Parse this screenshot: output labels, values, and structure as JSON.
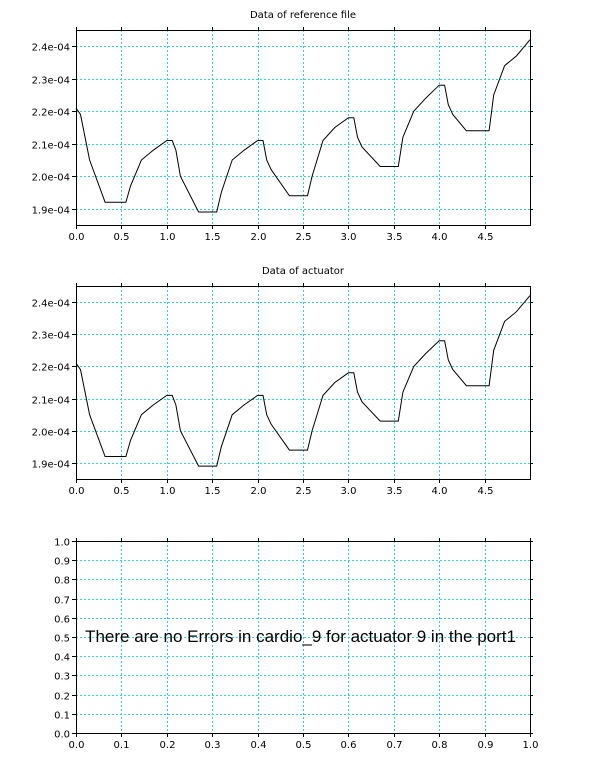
{
  "chart_data": [
    {
      "type": "line",
      "title": "Data of reference file",
      "xlim": [
        0,
        5
      ],
      "ylim": [
        0.000185,
        0.000245
      ],
      "grid": true,
      "x_ticks": [
        0.0,
        0.5,
        1.0,
        1.5,
        2.0,
        2.5,
        3.0,
        3.5,
        4.0,
        4.5
      ],
      "x_tick_labels": [
        "0.0",
        "0.5",
        "1.0",
        "1.5",
        "2.0",
        "2.5",
        "3.0",
        "3.5",
        "4.0",
        "4.5"
      ],
      "y_ticks": [
        0.00019,
        0.0002,
        0.00021,
        0.00022,
        0.00023,
        0.00024
      ],
      "y_tick_labels": [
        "1.9e-04",
        "2.0e-04",
        "2.1e-04",
        "2.2e-04",
        "2.3e-04",
        "2.4e-04"
      ],
      "series": [
        {
          "x": [
            0.0,
            0.05,
            0.15,
            0.32,
            0.55,
            0.6,
            0.72,
            0.85,
            1.0,
            1.06,
            1.1,
            1.15,
            1.35,
            1.55,
            1.6,
            1.72,
            1.85,
            2.0,
            2.06,
            2.1,
            2.15,
            2.35,
            2.55,
            2.6,
            2.72,
            2.85,
            3.0,
            3.06,
            3.1,
            3.15,
            3.35,
            3.55,
            3.6,
            3.72,
            3.85,
            4.0,
            4.06,
            4.1,
            4.15,
            4.3,
            4.55,
            4.6,
            4.72,
            4.85,
            5.0
          ],
          "y": [
            0.000221,
            0.000219,
            0.000205,
            0.000192,
            0.000192,
            0.000197,
            0.000205,
            0.000208,
            0.000211,
            0.000211,
            0.000208,
            0.0002,
            0.000189,
            0.000189,
            0.000195,
            0.000205,
            0.000208,
            0.000211,
            0.000211,
            0.000205,
            0.000202,
            0.000194,
            0.000194,
            0.0002,
            0.000211,
            0.000215,
            0.000218,
            0.000218,
            0.000212,
            0.000209,
            0.000203,
            0.000203,
            0.000212,
            0.00022,
            0.000224,
            0.000228,
            0.000228,
            0.000222,
            0.000219,
            0.000214,
            0.000214,
            0.000225,
            0.000234,
            0.000237,
            0.000242
          ]
        }
      ]
    },
    {
      "type": "line",
      "title": "Data of actuator",
      "xlim": [
        0,
        5
      ],
      "ylim": [
        0.000185,
        0.000245
      ],
      "grid": true,
      "x_ticks": [
        0.0,
        0.5,
        1.0,
        1.5,
        2.0,
        2.5,
        3.0,
        3.5,
        4.0,
        4.5
      ],
      "x_tick_labels": [
        "0.0",
        "0.5",
        "1.0",
        "1.5",
        "2.0",
        "2.5",
        "3.0",
        "3.5",
        "4.0",
        "4.5"
      ],
      "y_ticks": [
        0.00019,
        0.0002,
        0.00021,
        0.00022,
        0.00023,
        0.00024
      ],
      "y_tick_labels": [
        "1.9e-04",
        "2.0e-04",
        "2.1e-04",
        "2.2e-04",
        "2.3e-04",
        "2.4e-04"
      ],
      "series": [
        {
          "x": [
            0.0,
            0.05,
            0.15,
            0.32,
            0.55,
            0.6,
            0.72,
            0.85,
            1.0,
            1.06,
            1.1,
            1.15,
            1.35,
            1.55,
            1.6,
            1.72,
            1.85,
            2.0,
            2.06,
            2.1,
            2.15,
            2.35,
            2.55,
            2.6,
            2.72,
            2.85,
            3.0,
            3.06,
            3.1,
            3.15,
            3.35,
            3.55,
            3.6,
            3.72,
            3.85,
            4.0,
            4.06,
            4.1,
            4.15,
            4.3,
            4.55,
            4.6,
            4.72,
            4.85,
            5.0
          ],
          "y": [
            0.000221,
            0.000219,
            0.000205,
            0.000192,
            0.000192,
            0.000197,
            0.000205,
            0.000208,
            0.000211,
            0.000211,
            0.000208,
            0.0002,
            0.000189,
            0.000189,
            0.000195,
            0.000205,
            0.000208,
            0.000211,
            0.000211,
            0.000205,
            0.000202,
            0.000194,
            0.000194,
            0.0002,
            0.000211,
            0.000215,
            0.000218,
            0.000218,
            0.000212,
            0.000209,
            0.000203,
            0.000203,
            0.000212,
            0.00022,
            0.000224,
            0.000228,
            0.000228,
            0.000222,
            0.000219,
            0.000214,
            0.000214,
            0.000225,
            0.000234,
            0.000237,
            0.000242
          ]
        }
      ]
    },
    {
      "type": "line",
      "title": "",
      "xlim": [
        0,
        1
      ],
      "ylim": [
        0,
        1
      ],
      "grid": true,
      "x_ticks": [
        0.0,
        0.1,
        0.2,
        0.3,
        0.4,
        0.5,
        0.6,
        0.7,
        0.8,
        0.9,
        1.0
      ],
      "x_tick_labels": [
        "0.0",
        "0.1",
        "0.2",
        "0.3",
        "0.4",
        "0.5",
        "0.6",
        "0.7",
        "0.8",
        "0.9",
        "1.0"
      ],
      "y_ticks": [
        0.0,
        0.1,
        0.2,
        0.3,
        0.4,
        0.5,
        0.6,
        0.7,
        0.8,
        0.9,
        1.0
      ],
      "y_tick_labels": [
        "0.0",
        "0.1",
        "0.2",
        "0.3",
        "0.4",
        "0.5",
        "0.6",
        "0.7",
        "0.8",
        "0.9",
        "1.0"
      ],
      "annotation": {
        "text": "There are no Errors in cardio_9 for actuator 9 in the port1",
        "x": 0.02,
        "y": 0.5
      },
      "series": []
    }
  ],
  "colors": {
    "grid": "#30d0d8",
    "axis": "#000000",
    "line": "#000000"
  }
}
